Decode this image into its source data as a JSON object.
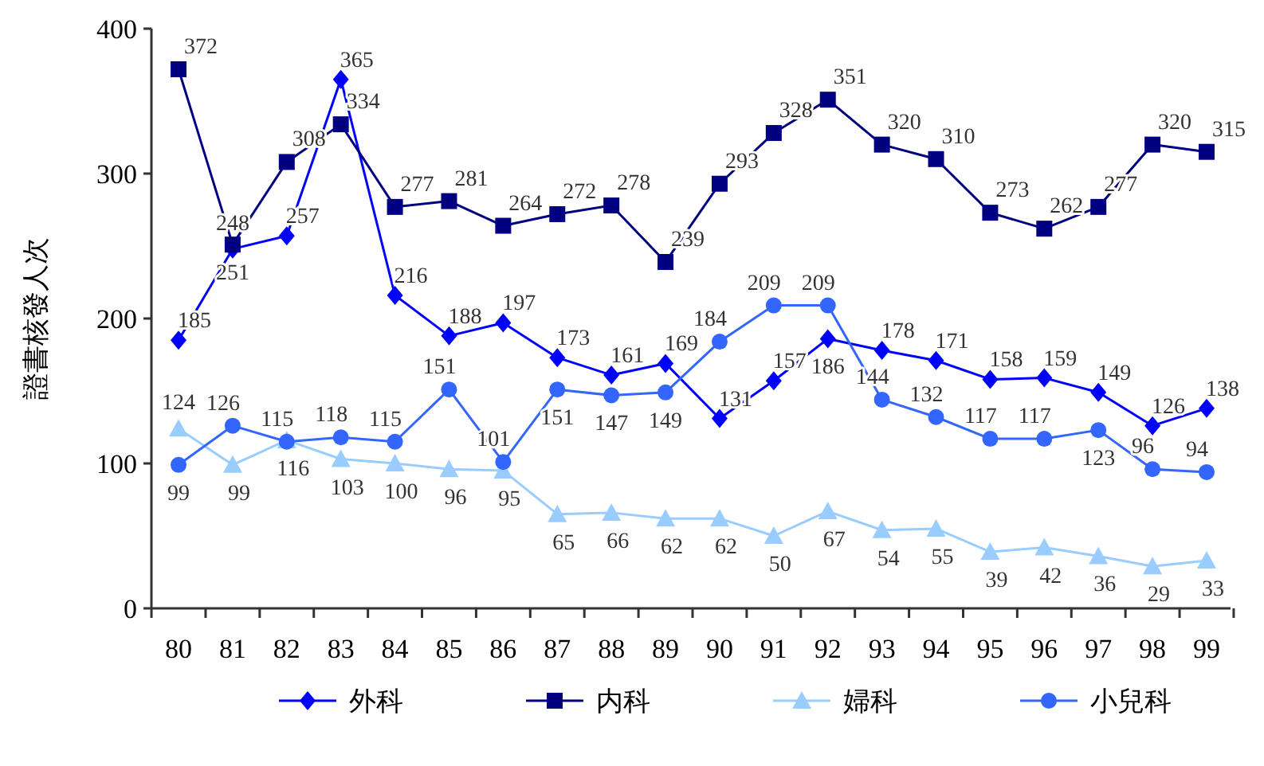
{
  "chart_data": {
    "type": "line",
    "ylabel": "證書核發人次",
    "categories": [
      "80",
      "81",
      "82",
      "83",
      "84",
      "85",
      "86",
      "87",
      "88",
      "89",
      "90",
      "91",
      "92",
      "93",
      "94",
      "95",
      "96",
      "97",
      "98",
      "99"
    ],
    "series": [
      {
        "name": "外科",
        "color": "#0000ff",
        "marker": "diamond",
        "values": [
          185,
          248,
          257,
          365,
          216,
          188,
          197,
          173,
          161,
          169,
          131,
          157,
          186,
          178,
          171,
          158,
          159,
          149,
          126,
          138
        ]
      },
      {
        "name": "内科",
        "color": "#000080",
        "marker": "square",
        "values": [
          372,
          251,
          308,
          334,
          277,
          281,
          264,
          272,
          278,
          239,
          293,
          328,
          351,
          320,
          310,
          273,
          262,
          277,
          320,
          315
        ]
      },
      {
        "name": "婦科",
        "color": "#99ccff",
        "marker": "triangle",
        "values": [
          124,
          99,
          116,
          103,
          100,
          96,
          95,
          65,
          66,
          62,
          62,
          50,
          67,
          54,
          55,
          39,
          42,
          36,
          29,
          33
        ]
      },
      {
        "name": "小兒科",
        "color": "#3366ff",
        "marker": "circle",
        "values": [
          99,
          126,
          115,
          118,
          115,
          151,
          101,
          151,
          147,
          149,
          184,
          209,
          209,
          144,
          132,
          117,
          117,
          123,
          96,
          94
        ]
      }
    ],
    "ylim": [
      0,
      400
    ],
    "yticks": [
      0,
      100,
      200,
      300,
      400
    ],
    "data_labels": true,
    "legend": "bottom",
    "grid": false
  }
}
